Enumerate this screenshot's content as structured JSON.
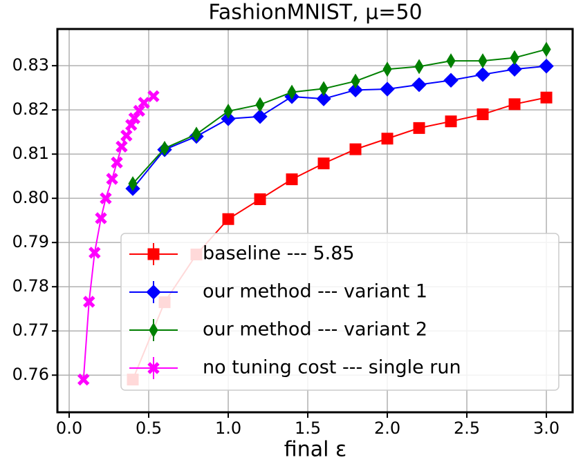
{
  "chart_data": {
    "type": "line",
    "title": "FashionMNIST, μ=50",
    "x_label": "final ε",
    "xlim": [
      -0.074,
      3.165
    ],
    "ylim": [
      0.7516,
      0.8383
    ],
    "xticks": [
      {
        "value": 0,
        "label": "0.0"
      },
      0.5,
      {
        "value": 1,
        "label": "1.0"
      },
      1.5,
      {
        "value": 2,
        "label": "2.0"
      },
      2.5,
      {
        "value": 3,
        "label": "3.0"
      }
    ],
    "yticks": [
      0.76,
      0.77,
      0.78,
      0.79,
      {
        "value": 0.8,
        "label": "0.80"
      },
      0.81,
      0.82,
      0.83
    ],
    "grid": true,
    "legend": "lower right",
    "series": [
      {
        "name": "baseline --- 5.85",
        "color": "#ff0000",
        "marker": "square",
        "x": [
          0.4,
          0.6,
          0.8,
          1.0,
          1.2,
          1.4,
          1.6,
          1.8,
          2.0,
          2.2,
          2.4,
          2.6,
          2.8,
          3.0
        ],
        "values": [
          0.759,
          0.7765,
          0.7873,
          0.7953,
          0.7998,
          0.8043,
          0.8079,
          0.8111,
          0.8135,
          0.8159,
          0.8174,
          0.819,
          0.8213,
          0.8228
        ]
      },
      {
        "name": "our method --- variant 1",
        "color": "#0000ff",
        "marker": "diamond",
        "x": [
          0.4,
          0.6,
          0.8,
          1.0,
          1.2,
          1.4,
          1.6,
          1.8,
          2.0,
          2.2,
          2.4,
          2.6,
          2.8,
          3.0
        ],
        "values": [
          0.8022,
          0.811,
          0.814,
          0.818,
          0.8185,
          0.823,
          0.8225,
          0.8245,
          0.8247,
          0.8257,
          0.8267,
          0.828,
          0.8292,
          0.8299
        ]
      },
      {
        "name": "our method --- variant 2",
        "color": "#008000",
        "marker": "thin_diamond",
        "x": [
          0.4,
          0.6,
          0.8,
          1.0,
          1.2,
          1.4,
          1.6,
          1.8,
          2.0,
          2.2,
          2.4,
          2.6,
          2.8,
          3.0
        ],
        "values": [
          0.8033,
          0.8113,
          0.8145,
          0.8197,
          0.8212,
          0.824,
          0.8248,
          0.8265,
          0.8292,
          0.8298,
          0.8311,
          0.8311,
          0.8318,
          0.8337
        ]
      },
      {
        "name": "no tuning cost --- single run",
        "color": "#ff00ff",
        "marker": "x",
        "x": [
          0.09,
          0.125,
          0.16,
          0.2,
          0.23,
          0.27,
          0.3,
          0.33,
          0.36,
          0.39,
          0.41,
          0.44,
          0.47,
          0.53
        ],
        "values": [
          0.759,
          0.7766,
          0.7877,
          0.7955,
          0.8,
          0.8044,
          0.8081,
          0.8117,
          0.8142,
          0.8166,
          0.8181,
          0.8198,
          0.8216,
          0.8231
        ]
      }
    ]
  }
}
